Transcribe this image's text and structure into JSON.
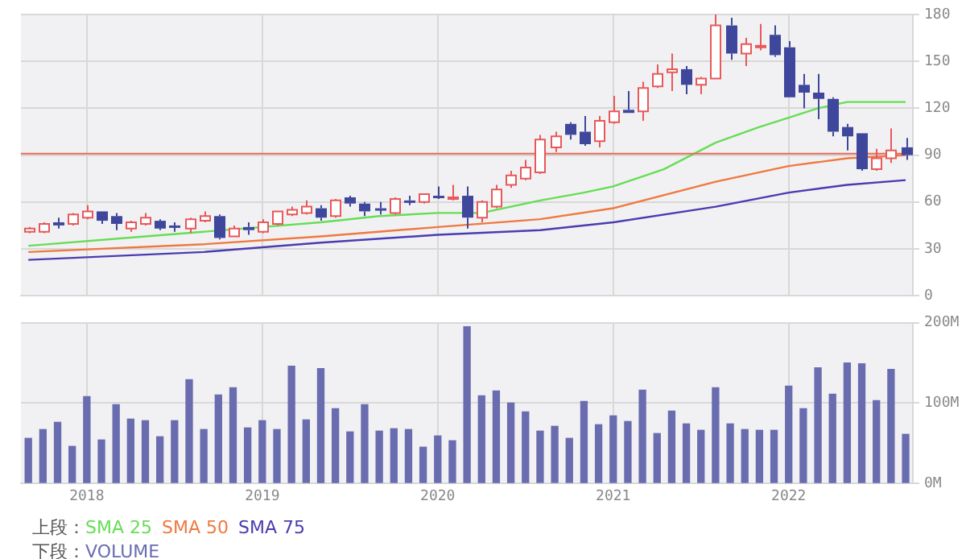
{
  "chart_data": [
    {
      "type": "candlestick",
      "legend_title": "上段：",
      "legend": "bottom",
      "grid": true,
      "tick_labels": "y",
      "x": [
        "2017-09",
        "2017-10",
        "2017-11",
        "2017-12",
        "2018-01",
        "2018-02",
        "2018-03",
        "2018-04",
        "2018-05",
        "2018-06",
        "2018-07",
        "2018-08",
        "2018-09",
        "2018-10",
        "2018-11",
        "2018-12",
        "2019-01",
        "2019-02",
        "2019-03",
        "2019-04",
        "2019-05",
        "2019-06",
        "2019-07",
        "2019-08",
        "2019-09",
        "2019-10",
        "2019-11",
        "2019-12",
        "2020-01",
        "2020-02",
        "2020-03",
        "2020-04",
        "2020-05",
        "2020-06",
        "2020-07",
        "2020-08",
        "2020-09",
        "2020-10",
        "2020-11",
        "2020-12",
        "2021-01",
        "2021-02",
        "2021-03",
        "2021-04",
        "2021-05",
        "2021-06",
        "2021-07",
        "2021-08",
        "2021-09",
        "2021-10",
        "2021-11",
        "2021-12",
        "2022-01",
        "2022-02",
        "2022-03",
        "2022-04",
        "2022-05",
        "2022-06",
        "2022-07",
        "2022-08",
        "2022-09"
      ],
      "ohlc": [
        [
          41,
          44,
          40,
          43
        ],
        [
          41,
          47,
          40,
          46
        ],
        [
          47,
          50,
          43,
          45
        ],
        [
          46,
          53,
          45,
          52
        ],
        [
          50,
          58,
          49,
          54
        ],
        [
          54,
          54,
          46,
          48
        ],
        [
          51,
          53,
          42,
          46
        ],
        [
          43,
          48,
          41,
          47
        ],
        [
          46,
          53,
          45,
          50
        ],
        [
          48,
          49,
          42,
          43
        ],
        [
          45,
          47,
          41,
          44
        ],
        [
          43,
          50,
          40,
          49
        ],
        [
          48,
          54,
          47,
          51
        ],
        [
          51,
          52,
          36,
          37
        ],
        [
          38,
          45,
          38,
          43
        ],
        [
          44,
          47,
          39,
          42
        ],
        [
          41,
          49,
          40,
          47
        ],
        [
          46,
          54,
          45,
          54
        ],
        [
          52,
          57,
          51,
          55
        ],
        [
          53,
          61,
          52,
          57
        ],
        [
          56,
          58,
          48,
          50
        ],
        [
          51,
          62,
          50,
          61
        ],
        [
          63,
          64,
          57,
          59
        ],
        [
          59,
          60,
          51,
          54
        ],
        [
          56,
          60,
          52,
          55
        ],
        [
          53,
          63,
          52,
          62
        ],
        [
          61,
          64,
          58,
          60
        ],
        [
          60,
          65,
          59,
          65
        ],
        [
          64,
          70,
          62,
          63
        ],
        [
          62,
          71,
          61,
          63
        ],
        [
          64,
          70,
          43,
          50
        ],
        [
          50,
          61,
          47,
          60
        ],
        [
          57,
          71,
          56,
          68
        ],
        [
          71,
          80,
          69,
          77
        ],
        [
          75,
          87,
          74,
          82
        ],
        [
          79,
          103,
          78,
          100
        ],
        [
          95,
          105,
          92,
          102
        ],
        [
          110,
          111,
          100,
          103
        ],
        [
          105,
          115,
          96,
          97
        ],
        [
          99,
          115,
          95,
          112
        ],
        [
          111,
          128,
          110,
          118
        ],
        [
          119,
          131,
          117,
          117
        ],
        [
          118,
          137,
          112,
          133
        ],
        [
          134,
          148,
          133,
          142
        ],
        [
          143,
          155,
          131,
          145
        ],
        [
          145,
          147,
          129,
          135
        ],
        [
          135,
          140,
          129,
          139
        ],
        [
          139,
          180,
          139,
          173
        ],
        [
          173,
          178,
          151,
          155
        ],
        [
          155,
          165,
          147,
          161
        ],
        [
          159,
          174,
          157,
          160
        ],
        [
          167,
          173,
          153,
          154
        ],
        [
          159,
          163,
          127,
          127
        ],
        [
          135,
          142,
          120,
          130
        ],
        [
          130,
          142,
          113,
          126
        ],
        [
          126,
          127,
          102,
          105
        ],
        [
          108,
          110,
          93,
          102
        ],
        [
          104,
          104,
          80,
          81
        ],
        [
          81,
          94,
          80,
          88
        ],
        [
          88,
          107,
          85,
          93
        ],
        [
          95,
          101,
          87,
          90
        ]
      ],
      "series": [
        {
          "name": "SMA 25",
          "type": "line",
          "color": "#66dd55",
          "x": [
            "2017-09",
            "2018-05",
            "2019-01",
            "2019-05",
            "2019-09",
            "2020-01",
            "2020-04",
            "2020-08",
            "2020-11",
            "2021-01",
            "2021-04-15",
            "2021-08",
            "2021-11",
            "2022-01",
            "2022-03",
            "2022-05",
            "2022-09"
          ],
          "values": [
            32,
            38,
            44,
            47,
            51,
            53,
            53,
            61,
            66,
            70,
            81,
            98,
            108,
            114,
            120,
            124,
            124
          ]
        },
        {
          "name": "SMA 50",
          "type": "line",
          "color": "#f07840",
          "x": [
            "2017-09",
            "2018-09",
            "2019-05",
            "2020-01",
            "2020-08",
            "2021-01",
            "2021-08",
            "2022-01",
            "2022-05",
            "2022-09"
          ],
          "values": [
            28,
            33,
            38,
            44,
            49,
            56,
            73,
            83,
            88,
            90
          ]
        },
        {
          "name": "SMA 75",
          "type": "line",
          "color": "#4a3cb0",
          "x": [
            "2017-09",
            "2018-09",
            "2019-05",
            "2020-01",
            "2020-08",
            "2021-01",
            "2021-08",
            "2022-01",
            "2022-05",
            "2022-09"
          ],
          "values": [
            23,
            28,
            34,
            39,
            42,
            47,
            57,
            66,
            71,
            74
          ]
        }
      ],
      "xlim": [
        "2017-08-16",
        "2022-09-16"
      ],
      "xticks": [
        "2018",
        "2019",
        "2020",
        "2021",
        "2022"
      ],
      "ylim": [
        0,
        180
      ],
      "yticks": [
        0,
        30,
        60,
        90,
        120,
        150,
        180
      ],
      "ref_lines": [
        {
          "axis": "y",
          "value": 91,
          "color": "#e86a5a"
        }
      ]
    },
    {
      "type": "bar",
      "legend_title": "下段：",
      "legend": "bottom",
      "grid": true,
      "x": [
        "2017-09",
        "2017-10",
        "2017-11",
        "2017-12",
        "2018-01",
        "2018-02",
        "2018-03",
        "2018-04",
        "2018-05",
        "2018-06",
        "2018-07",
        "2018-08",
        "2018-09",
        "2018-10",
        "2018-11",
        "2018-12",
        "2019-01",
        "2019-02",
        "2019-03",
        "2019-04",
        "2019-05",
        "2019-06",
        "2019-07",
        "2019-08",
        "2019-09",
        "2019-10",
        "2019-11",
        "2019-12",
        "2020-01",
        "2020-02",
        "2020-03",
        "2020-04",
        "2020-05",
        "2020-06",
        "2020-07",
        "2020-08",
        "2020-09",
        "2020-10",
        "2020-11",
        "2020-12",
        "2021-01",
        "2021-02",
        "2021-03",
        "2021-04",
        "2021-05",
        "2021-06",
        "2021-07",
        "2021-08",
        "2021-09",
        "2021-10",
        "2021-11",
        "2021-12",
        "2022-01",
        "2022-02",
        "2022-03",
        "2022-04",
        "2022-05",
        "2022-06",
        "2022-07",
        "2022-08",
        "2022-09"
      ],
      "series": [
        {
          "name": "VOLUME",
          "color": "#6a6cb0",
          "values": [
            56,
            67,
            76,
            46,
            108,
            54,
            98,
            80,
            78,
            58,
            78,
            129,
            67,
            110,
            119,
            69,
            78,
            67,
            146,
            79,
            143,
            93,
            64,
            98,
            65,
            68,
            67,
            45,
            59,
            53,
            195,
            109,
            115,
            100,
            89,
            65,
            71,
            56,
            102,
            73,
            84,
            77,
            116,
            62,
            90,
            74,
            66,
            119,
            74,
            67,
            66,
            66,
            121,
            93,
            144,
            111,
            150,
            149,
            103,
            142,
            61
          ]
        }
      ],
      "xlim": [
        "2017-08-16",
        "2022-09-16"
      ],
      "xticks": [
        "2018",
        "2019",
        "2020",
        "2021",
        "2022"
      ],
      "ylim": [
        0,
        200
      ],
      "yticks": [
        {
          "value": 0,
          "label": "0M"
        },
        {
          "value": 100,
          "label": "100M"
        },
        {
          "value": 200,
          "label": "200M"
        }
      ]
    }
  ]
}
